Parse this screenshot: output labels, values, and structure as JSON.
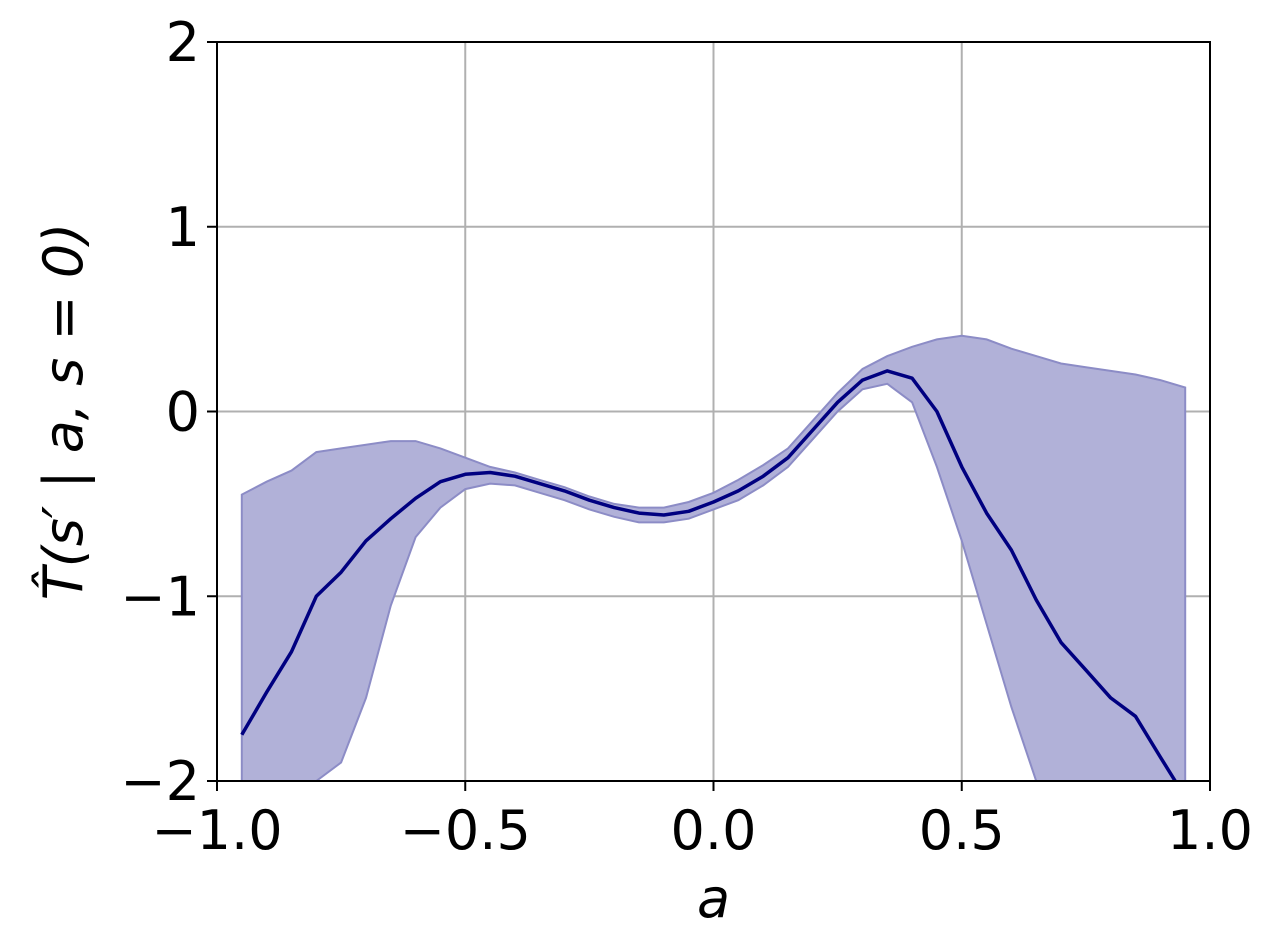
{
  "chart_data": {
    "type": "line",
    "title": "",
    "xlabel": "a",
    "ylabel": "T̂(s′ | a, s = 0)",
    "xlim": [
      -1.0,
      1.0
    ],
    "ylim": [
      -2,
      2
    ],
    "xticks": [
      -1.0,
      -0.5,
      0.0,
      0.5,
      1.0
    ],
    "xtick_labels": [
      "−1.0",
      "−0.5",
      "0.0",
      "0.5",
      "1.0"
    ],
    "yticks": [
      -2,
      -1,
      0,
      1,
      2
    ],
    "ytick_labels": [
      "−2",
      "−1",
      "0",
      "1",
      "2"
    ],
    "grid": true,
    "colors": {
      "line": "#000080",
      "band": "#b1b1d8",
      "band_edge": "#8c8cc6"
    },
    "series": [
      {
        "type": "line",
        "x": [
          -0.95,
          -0.9,
          -0.85,
          -0.8,
          -0.75,
          -0.7,
          -0.65,
          -0.6,
          -0.55,
          -0.5,
          -0.45,
          -0.4,
          -0.35,
          -0.3,
          -0.25,
          -0.2,
          -0.15,
          -0.1,
          -0.05,
          0.0,
          0.05,
          0.1,
          0.15,
          0.2,
          0.25,
          0.3,
          0.35,
          0.4,
          0.45,
          0.5,
          0.55,
          0.6,
          0.65,
          0.7,
          0.75,
          0.8,
          0.85,
          0.9,
          0.93
        ],
        "y": [
          -1.75,
          -1.52,
          -1.3,
          -1.0,
          -0.87,
          -0.7,
          -0.58,
          -0.47,
          -0.38,
          -0.34,
          -0.33,
          -0.35,
          -0.39,
          -0.43,
          -0.48,
          -0.52,
          -0.55,
          -0.56,
          -0.54,
          -0.49,
          -0.43,
          -0.35,
          -0.25,
          -0.1,
          0.05,
          0.17,
          0.22,
          0.18,
          0.0,
          -0.3,
          -0.55,
          -0.75,
          -1.02,
          -1.25,
          -1.4,
          -1.55,
          -1.65,
          -1.87,
          -2.0
        ]
      },
      {
        "type": "band",
        "x": [
          -0.95,
          -0.9,
          -0.85,
          -0.8,
          -0.75,
          -0.7,
          -0.65,
          -0.6,
          -0.55,
          -0.5,
          -0.45,
          -0.4,
          -0.35,
          -0.3,
          -0.25,
          -0.2,
          -0.15,
          -0.1,
          -0.05,
          0.0,
          0.05,
          0.1,
          0.15,
          0.2,
          0.25,
          0.3,
          0.35,
          0.4,
          0.45,
          0.5,
          0.55,
          0.6,
          0.65,
          0.7,
          0.75,
          0.8,
          0.85,
          0.9,
          0.95
        ],
        "upper": [
          -0.45,
          -0.38,
          -0.32,
          -0.22,
          -0.2,
          -0.18,
          -0.16,
          -0.16,
          -0.2,
          -0.25,
          -0.3,
          -0.33,
          -0.37,
          -0.41,
          -0.46,
          -0.5,
          -0.52,
          -0.52,
          -0.49,
          -0.44,
          -0.37,
          -0.29,
          -0.2,
          -0.05,
          0.1,
          0.23,
          0.3,
          0.35,
          0.39,
          0.41,
          0.39,
          0.34,
          0.3,
          0.26,
          0.24,
          0.22,
          0.2,
          0.17,
          0.13
        ],
        "lower": [
          -2.0,
          -2.0,
          -2.0,
          -2.0,
          -1.9,
          -1.55,
          -1.05,
          -0.68,
          -0.52,
          -0.42,
          -0.39,
          -0.4,
          -0.44,
          -0.48,
          -0.53,
          -0.57,
          -0.6,
          -0.6,
          -0.58,
          -0.53,
          -0.48,
          -0.4,
          -0.3,
          -0.15,
          0.0,
          0.12,
          0.15,
          0.05,
          -0.3,
          -0.7,
          -1.15,
          -1.6,
          -2.0,
          -2.0,
          -2.0,
          -2.0,
          -2.0,
          -2.0,
          -2.0
        ]
      }
    ]
  }
}
